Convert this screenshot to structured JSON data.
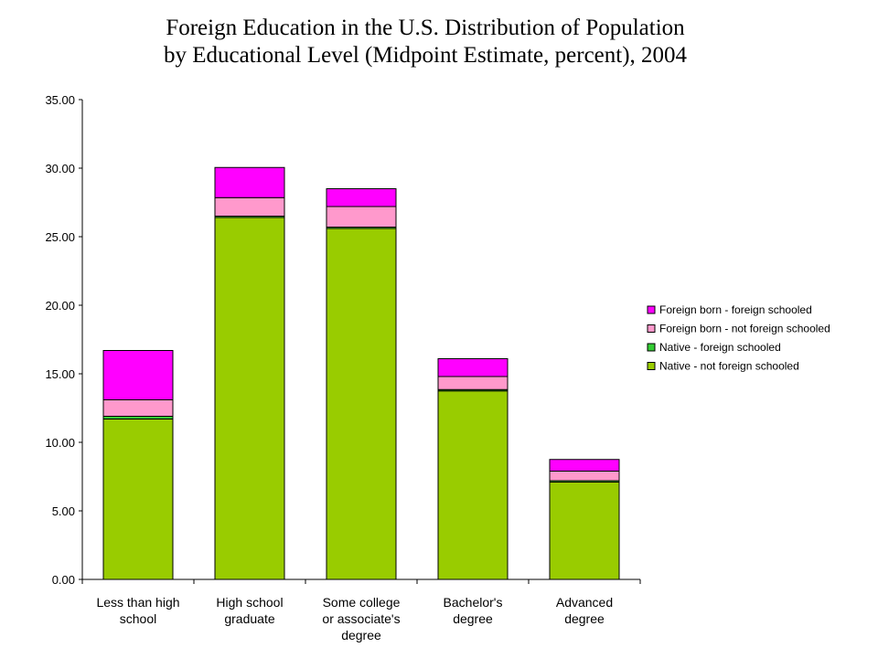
{
  "chart_data": {
    "type": "bar",
    "stacked": true,
    "title": [
      "Foreign Education in the U.S. Distribution of Population",
      "by Educational Level (Midpoint Estimate, percent), 2004"
    ],
    "categories": [
      [
        "Less than high",
        "school"
      ],
      [
        "High school",
        "graduate"
      ],
      [
        "Some college",
        "or associate's",
        "degree"
      ],
      [
        "Bachelor's",
        "degree"
      ],
      [
        "Advanced",
        "degree"
      ]
    ],
    "ylim": [
      0,
      35
    ],
    "yticks": [
      "0.00",
      "5.00",
      "10.00",
      "15.00",
      "20.00",
      "25.00",
      "30.00",
      "35.00"
    ],
    "grid": false,
    "legend_position": "right",
    "series": [
      {
        "name": "Native - not foreign schooled",
        "color": "#99CC00",
        "values": [
          11.7,
          26.4,
          25.6,
          13.75,
          7.1
        ]
      },
      {
        "name": "Native - foreign schooled",
        "color": "#33CC33",
        "values": [
          0.2,
          0.1,
          0.1,
          0.1,
          0.1
        ]
      },
      {
        "name": "Foreign born - not foreign schooled",
        "color": "#FF99CC",
        "values": [
          1.2,
          1.35,
          1.5,
          0.95,
          0.7
        ]
      },
      {
        "name": "Foreign born - foreign schooled",
        "color": "#FF00FF",
        "values": [
          3.6,
          2.2,
          1.3,
          1.3,
          0.85
        ]
      }
    ]
  }
}
